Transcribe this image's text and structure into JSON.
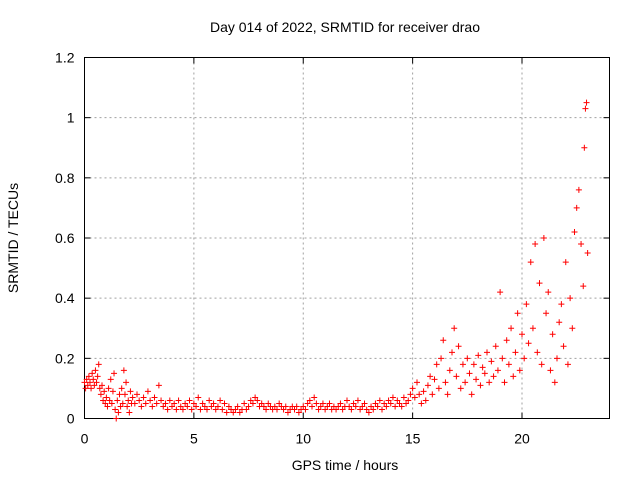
{
  "chart_data": {
    "type": "scatter",
    "title": "Day 014 of 2022, SRMTID for receiver drao",
    "xlabel": "GPS time / hours",
    "ylabel": "SRMTID / TECUs",
    "xlim": [
      0,
      24
    ],
    "ylim": [
      0,
      1.2
    ],
    "xticks": [
      0,
      5,
      10,
      15,
      20
    ],
    "xtick_labels": [
      "0",
      "5",
      "10",
      "15",
      "20"
    ],
    "yticks": [
      0,
      0.2,
      0.4,
      0.6,
      0.8,
      1,
      1.2
    ],
    "ytick_labels": [
      "0",
      "0.2",
      "0.4",
      "0.6",
      "0.8",
      "1",
      "1.2"
    ],
    "grid": true,
    "marker": "+",
    "marker_color": "#ff0000",
    "series": [
      {
        "name": "SRMTID",
        "points": [
          [
            0.0,
            0.12
          ],
          [
            0.05,
            0.1
          ],
          [
            0.1,
            0.13
          ],
          [
            0.15,
            0.11
          ],
          [
            0.2,
            0.14
          ],
          [
            0.25,
            0.12
          ],
          [
            0.3,
            0.1
          ],
          [
            0.35,
            0.15
          ],
          [
            0.4,
            0.13
          ],
          [
            0.45,
            0.11
          ],
          [
            0.5,
            0.16
          ],
          [
            0.55,
            0.12
          ],
          [
            0.6,
            0.14
          ],
          [
            0.65,
            0.18
          ],
          [
            0.7,
            0.1
          ],
          [
            0.75,
            0.08
          ],
          [
            0.8,
            0.11
          ],
          [
            0.85,
            0.06
          ],
          [
            0.9,
            0.09
          ],
          [
            0.95,
            0.05
          ],
          [
            1.0,
            0.07
          ],
          [
            1.05,
            0.04
          ],
          [
            1.1,
            0.1
          ],
          [
            1.15,
            0.06
          ],
          [
            1.2,
            0.13
          ],
          [
            1.25,
            0.05
          ],
          [
            1.3,
            0.09
          ],
          [
            1.35,
            0.15
          ],
          [
            1.4,
            0.03
          ],
          [
            1.45,
            0.0
          ],
          [
            1.5,
            0.06
          ],
          [
            1.55,
            0.02
          ],
          [
            1.6,
            0.08
          ],
          [
            1.65,
            0.04
          ],
          [
            1.7,
            0.1
          ],
          [
            1.75,
            0.05
          ],
          [
            1.8,
            0.16
          ],
          [
            1.85,
            0.08
          ],
          [
            1.9,
            0.12
          ],
          [
            1.95,
            0.04
          ],
          [
            2.0,
            0.06
          ],
          [
            2.05,
            0.02
          ],
          [
            2.1,
            0.09
          ],
          [
            2.15,
            0.05
          ],
          [
            2.2,
            0.07
          ],
          [
            2.3,
            0.05
          ],
          [
            2.4,
            0.08
          ],
          [
            2.5,
            0.06
          ],
          [
            2.6,
            0.04
          ],
          [
            2.7,
            0.07
          ],
          [
            2.8,
            0.05
          ],
          [
            2.9,
            0.09
          ],
          [
            3.0,
            0.06
          ],
          [
            3.1,
            0.04
          ],
          [
            3.2,
            0.07
          ],
          [
            3.3,
            0.05
          ],
          [
            3.4,
            0.11
          ],
          [
            3.5,
            0.06
          ],
          [
            3.6,
            0.04
          ],
          [
            3.7,
            0.05
          ],
          [
            3.8,
            0.03
          ],
          [
            3.9,
            0.06
          ],
          [
            4.0,
            0.04
          ],
          [
            4.1,
            0.05
          ],
          [
            4.2,
            0.03
          ],
          [
            4.3,
            0.06
          ],
          [
            4.4,
            0.04
          ],
          [
            4.5,
            0.03
          ],
          [
            4.6,
            0.05
          ],
          [
            4.7,
            0.04
          ],
          [
            4.8,
            0.06
          ],
          [
            4.9,
            0.03
          ],
          [
            5.0,
            0.05
          ],
          [
            5.1,
            0.04
          ],
          [
            5.2,
            0.07
          ],
          [
            5.3,
            0.03
          ],
          [
            5.4,
            0.05
          ],
          [
            5.5,
            0.04
          ],
          [
            5.6,
            0.03
          ],
          [
            5.7,
            0.06
          ],
          [
            5.8,
            0.04
          ],
          [
            5.9,
            0.05
          ],
          [
            6.0,
            0.03
          ],
          [
            6.1,
            0.04
          ],
          [
            6.2,
            0.06
          ],
          [
            6.3,
            0.03
          ],
          [
            6.4,
            0.05
          ],
          [
            6.5,
            0.02
          ],
          [
            6.6,
            0.04
          ],
          [
            6.7,
            0.03
          ],
          [
            6.8,
            0.02
          ],
          [
            6.9,
            0.03
          ],
          [
            7.0,
            0.04
          ],
          [
            7.1,
            0.02
          ],
          [
            7.2,
            0.03
          ],
          [
            7.3,
            0.05
          ],
          [
            7.4,
            0.03
          ],
          [
            7.5,
            0.04
          ],
          [
            7.6,
            0.06
          ],
          [
            7.7,
            0.05
          ],
          [
            7.8,
            0.07
          ],
          [
            7.9,
            0.06
          ],
          [
            8.0,
            0.04
          ],
          [
            8.1,
            0.05
          ],
          [
            8.2,
            0.04
          ],
          [
            8.3,
            0.03
          ],
          [
            8.4,
            0.05
          ],
          [
            8.5,
            0.04
          ],
          [
            8.6,
            0.03
          ],
          [
            8.7,
            0.04
          ],
          [
            8.8,
            0.03
          ],
          [
            8.9,
            0.05
          ],
          [
            9.0,
            0.04
          ],
          [
            9.1,
            0.03
          ],
          [
            9.2,
            0.04
          ],
          [
            9.3,
            0.02
          ],
          [
            9.4,
            0.03
          ],
          [
            9.5,
            0.04
          ],
          [
            9.6,
            0.03
          ],
          [
            9.7,
            0.04
          ],
          [
            9.8,
            0.02
          ],
          [
            9.9,
            0.03
          ],
          [
            10.0,
            0.04
          ],
          [
            10.1,
            0.03
          ],
          [
            10.2,
            0.05
          ],
          [
            10.3,
            0.06
          ],
          [
            10.4,
            0.04
          ],
          [
            10.5,
            0.07
          ],
          [
            10.6,
            0.05
          ],
          [
            10.7,
            0.03
          ],
          [
            10.8,
            0.04
          ],
          [
            10.9,
            0.05
          ],
          [
            11.0,
            0.03
          ],
          [
            11.1,
            0.04
          ],
          [
            11.2,
            0.05
          ],
          [
            11.3,
            0.03
          ],
          [
            11.4,
            0.04
          ],
          [
            11.5,
            0.03
          ],
          [
            11.6,
            0.04
          ],
          [
            11.7,
            0.05
          ],
          [
            11.8,
            0.03
          ],
          [
            11.9,
            0.04
          ],
          [
            12.0,
            0.06
          ],
          [
            12.1,
            0.04
          ],
          [
            12.2,
            0.03
          ],
          [
            12.3,
            0.05
          ],
          [
            12.4,
            0.04
          ],
          [
            12.5,
            0.06
          ],
          [
            12.6,
            0.03
          ],
          [
            12.7,
            0.04
          ],
          [
            12.8,
            0.05
          ],
          [
            12.9,
            0.03
          ],
          [
            13.0,
            0.02
          ],
          [
            13.1,
            0.04
          ],
          [
            13.2,
            0.03
          ],
          [
            13.3,
            0.05
          ],
          [
            13.4,
            0.04
          ],
          [
            13.5,
            0.06
          ],
          [
            13.6,
            0.03
          ],
          [
            13.7,
            0.05
          ],
          [
            13.8,
            0.04
          ],
          [
            13.9,
            0.06
          ],
          [
            14.0,
            0.05
          ],
          [
            14.1,
            0.07
          ],
          [
            14.2,
            0.04
          ],
          [
            14.3,
            0.06
          ],
          [
            14.4,
            0.05
          ],
          [
            14.5,
            0.04
          ],
          [
            14.6,
            0.07
          ],
          [
            14.7,
            0.05
          ],
          [
            14.8,
            0.06
          ],
          [
            14.9,
            0.08
          ],
          [
            15.0,
            0.1
          ],
          [
            15.1,
            0.07
          ],
          [
            15.2,
            0.12
          ],
          [
            15.3,
            0.08
          ],
          [
            15.4,
            0.05
          ],
          [
            15.5,
            0.09
          ],
          [
            15.6,
            0.06
          ],
          [
            15.7,
            0.11
          ],
          [
            15.8,
            0.14
          ],
          [
            15.9,
            0.08
          ],
          [
            16.0,
            0.13
          ],
          [
            16.1,
            0.18
          ],
          [
            16.2,
            0.1
          ],
          [
            16.3,
            0.2
          ],
          [
            16.4,
            0.26
          ],
          [
            16.5,
            0.12
          ],
          [
            16.6,
            0.08
          ],
          [
            16.7,
            0.16
          ],
          [
            16.8,
            0.22
          ],
          [
            16.9,
            0.3
          ],
          [
            17.0,
            0.14
          ],
          [
            17.1,
            0.24
          ],
          [
            17.2,
            0.1
          ],
          [
            17.3,
            0.18
          ],
          [
            17.4,
            0.12
          ],
          [
            17.5,
            0.2
          ],
          [
            17.6,
            0.15
          ],
          [
            17.7,
            0.08
          ],
          [
            17.8,
            0.18
          ],
          [
            17.9,
            0.13
          ],
          [
            18.0,
            0.21
          ],
          [
            18.1,
            0.11
          ],
          [
            18.2,
            0.17
          ],
          [
            18.3,
            0.15
          ],
          [
            18.4,
            0.22
          ],
          [
            18.5,
            0.12
          ],
          [
            18.6,
            0.19
          ],
          [
            18.7,
            0.14
          ],
          [
            18.8,
            0.24
          ],
          [
            18.9,
            0.16
          ],
          [
            19.0,
            0.42
          ],
          [
            19.1,
            0.2
          ],
          [
            19.2,
            0.12
          ],
          [
            19.3,
            0.26
          ],
          [
            19.4,
            0.18
          ],
          [
            19.5,
            0.3
          ],
          [
            19.6,
            0.14
          ],
          [
            19.7,
            0.22
          ],
          [
            19.8,
            0.35
          ],
          [
            19.9,
            0.16
          ],
          [
            20.0,
            0.28
          ],
          [
            20.1,
            0.2
          ],
          [
            20.2,
            0.38
          ],
          [
            20.3,
            0.25
          ],
          [
            20.4,
            0.52
          ],
          [
            20.5,
            0.3
          ],
          [
            20.6,
            0.58
          ],
          [
            20.7,
            0.22
          ],
          [
            20.8,
            0.45
          ],
          [
            20.9,
            0.18
          ],
          [
            21.0,
            0.6
          ],
          [
            21.1,
            0.35
          ],
          [
            21.2,
            0.42
          ],
          [
            21.3,
            0.16
          ],
          [
            21.4,
            0.28
          ],
          [
            21.5,
            0.12
          ],
          [
            21.6,
            0.2
          ],
          [
            21.7,
            0.32
          ],
          [
            21.8,
            0.38
          ],
          [
            21.9,
            0.24
          ],
          [
            22.0,
            0.52
          ],
          [
            22.1,
            0.18
          ],
          [
            22.2,
            0.4
          ],
          [
            22.3,
            0.3
          ],
          [
            22.4,
            0.62
          ],
          [
            22.5,
            0.7
          ],
          [
            22.6,
            0.76
          ],
          [
            22.7,
            0.58
          ],
          [
            22.8,
            0.44
          ],
          [
            22.85,
            0.9
          ],
          [
            22.9,
            1.03
          ],
          [
            22.95,
            1.05
          ],
          [
            23.0,
            0.55
          ]
        ]
      }
    ]
  }
}
